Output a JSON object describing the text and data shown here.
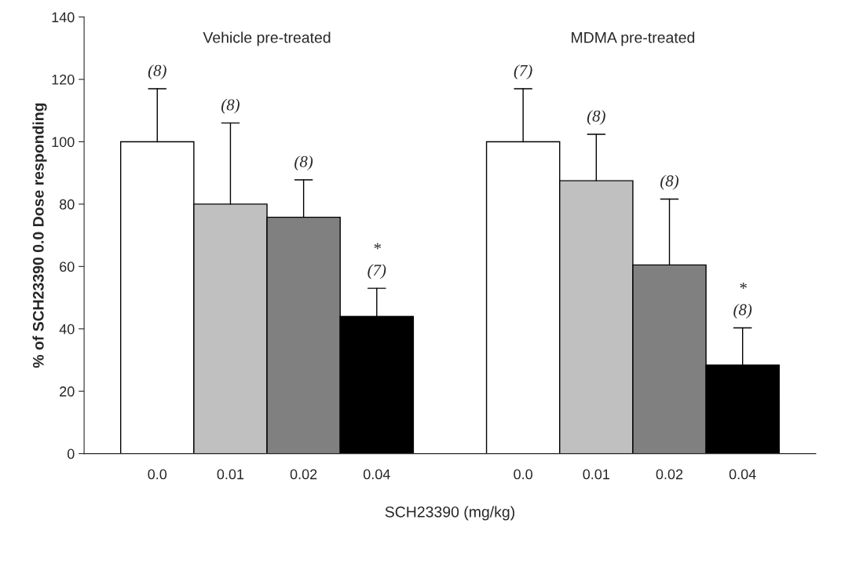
{
  "chart_data": {
    "type": "bar",
    "xlabel": "SCH23390 (mg/kg)",
    "ylabel": "% of SCH23390 0.0 Dose responding",
    "categories": [
      "0.0",
      "0.01",
      "0.02",
      "0.04",
      null,
      "0.0",
      "0.01",
      "0.02",
      "0.04"
    ],
    "values": [
      100,
      80,
      75.8,
      44,
      null,
      100,
      87.5,
      60.5,
      28.4
    ],
    "colors": [
      "#ffffff",
      "#c0c0c0",
      "#808080",
      "#000000",
      "#ffffff",
      "#ffffff",
      "#c0c0c0",
      "#808080",
      "#000000"
    ],
    "errors": [
      [
        100,
        117
      ],
      [
        80,
        106
      ],
      [
        75.8,
        87.8
      ],
      [
        44,
        53
      ],
      null,
      [
        100,
        117
      ],
      [
        87.5,
        102.4
      ],
      [
        60.5,
        81.6
      ],
      [
        28.4,
        40.3
      ]
    ],
    "annotations": [
      "Vehicle pre-treated",
      "MDMA pre-treated",
      "(8)",
      "(8)",
      "(8)",
      "*\n(7)",
      "(7)",
      "(8)",
      "(8)",
      "*\n(8)"
    ],
    "ylim": [
      0,
      140
    ],
    "yticks": [
      0,
      20,
      40,
      60,
      80,
      100,
      120,
      140
    ],
    "grid": false
  }
}
